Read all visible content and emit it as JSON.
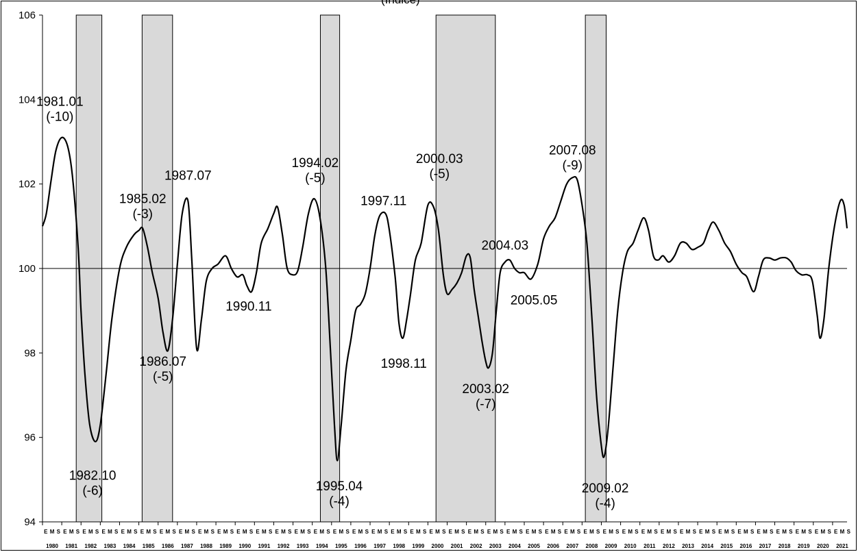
{
  "top_fragment": "(Índice)",
  "chart_data": {
    "type": "line",
    "title": "",
    "xlabel": "",
    "ylabel": "",
    "ylim": [
      94,
      106
    ],
    "y_ticks": [
      94,
      96,
      98,
      100,
      102,
      104,
      106
    ],
    "reference_line": 100,
    "grid": false,
    "x_start": 1980.0,
    "x_end": 2021.75,
    "year_labels": [
      "1980",
      "1981",
      "1982",
      "1983",
      "1984",
      "1985",
      "1986",
      "1987",
      "1988",
      "1989",
      "1990",
      "1991",
      "1992",
      "1993",
      "1994",
      "1995",
      "1996",
      "1997",
      "1998",
      "1999",
      "2000",
      "2001",
      "2002",
      "2003",
      "2004",
      "2005",
      "2006",
      "2007",
      "2008",
      "2009",
      "2010",
      "2011",
      "2012",
      "2013",
      "2014",
      "2015",
      "2016",
      "2017",
      "2018",
      "2019",
      "2020",
      "2021"
    ],
    "month_letters": [
      "E",
      "M",
      "S"
    ],
    "shaded_periods": [
      [
        1981.75,
        1983.08
      ],
      [
        1985.17,
        1986.75
      ],
      [
        1994.42,
        1995.42
      ],
      [
        2000.42,
        2003.5
      ],
      [
        2008.17,
        2009.25
      ]
    ],
    "series": [
      {
        "points": [
          [
            1980.0,
            101.0
          ],
          [
            1980.2,
            101.3
          ],
          [
            1980.45,
            102.1
          ],
          [
            1980.7,
            102.8
          ],
          [
            1981.0,
            103.1
          ],
          [
            1981.3,
            102.9
          ],
          [
            1981.55,
            102.2
          ],
          [
            1981.85,
            100.5
          ],
          [
            1982.0,
            99.0
          ],
          [
            1982.2,
            97.5
          ],
          [
            1982.45,
            96.3
          ],
          [
            1982.75,
            95.9
          ],
          [
            1983.0,
            96.3
          ],
          [
            1983.3,
            97.5
          ],
          [
            1983.6,
            98.8
          ],
          [
            1984.0,
            100.0
          ],
          [
            1984.35,
            100.5
          ],
          [
            1984.75,
            100.8
          ],
          [
            1985.0,
            100.9
          ],
          [
            1985.2,
            100.95
          ],
          [
            1985.45,
            100.5
          ],
          [
            1985.7,
            99.9
          ],
          [
            1986.0,
            99.3
          ],
          [
            1986.25,
            98.5
          ],
          [
            1986.5,
            98.05
          ],
          [
            1986.75,
            98.8
          ],
          [
            1987.0,
            100.1
          ],
          [
            1987.25,
            101.3
          ],
          [
            1987.55,
            101.6
          ],
          [
            1987.75,
            100.2
          ],
          [
            1988.0,
            98.1
          ],
          [
            1988.25,
            98.8
          ],
          [
            1988.5,
            99.7
          ],
          [
            1988.8,
            100.0
          ],
          [
            1989.1,
            100.1
          ],
          [
            1989.5,
            100.3
          ],
          [
            1989.8,
            100.0
          ],
          [
            1990.1,
            99.8
          ],
          [
            1990.4,
            99.85
          ],
          [
            1990.6,
            99.6
          ],
          [
            1990.85,
            99.45
          ],
          [
            1991.1,
            99.9
          ],
          [
            1991.35,
            100.6
          ],
          [
            1991.7,
            100.95
          ],
          [
            1992.0,
            101.3
          ],
          [
            1992.2,
            101.45
          ],
          [
            1992.45,
            100.8
          ],
          [
            1992.7,
            100.0
          ],
          [
            1993.0,
            99.85
          ],
          [
            1993.25,
            99.95
          ],
          [
            1993.5,
            100.5
          ],
          [
            1993.8,
            101.3
          ],
          [
            1994.1,
            101.65
          ],
          [
            1994.4,
            101.2
          ],
          [
            1994.7,
            100.0
          ],
          [
            1994.95,
            98.0
          ],
          [
            1995.15,
            96.3
          ],
          [
            1995.3,
            95.45
          ],
          [
            1995.5,
            96.3
          ],
          [
            1995.75,
            97.6
          ],
          [
            1996.0,
            98.3
          ],
          [
            1996.25,
            99.0
          ],
          [
            1996.5,
            99.15
          ],
          [
            1996.75,
            99.4
          ],
          [
            1997.0,
            100.0
          ],
          [
            1997.25,
            100.8
          ],
          [
            1997.5,
            101.25
          ],
          [
            1997.8,
            101.3
          ],
          [
            1998.0,
            100.9
          ],
          [
            1998.3,
            99.8
          ],
          [
            1998.5,
            98.7
          ],
          [
            1998.7,
            98.35
          ],
          [
            1998.9,
            98.8
          ],
          [
            1999.1,
            99.4
          ],
          [
            1999.35,
            100.2
          ],
          [
            1999.65,
            100.6
          ],
          [
            2000.0,
            101.5
          ],
          [
            2000.3,
            101.45
          ],
          [
            2000.55,
            100.9
          ],
          [
            2000.8,
            99.85
          ],
          [
            2001.0,
            99.4
          ],
          [
            2001.25,
            99.5
          ],
          [
            2001.5,
            99.65
          ],
          [
            2001.75,
            99.9
          ],
          [
            2002.0,
            100.3
          ],
          [
            2002.2,
            100.25
          ],
          [
            2002.4,
            99.5
          ],
          [
            2002.6,
            98.9
          ],
          [
            2002.8,
            98.3
          ],
          [
            2003.0,
            97.8
          ],
          [
            2003.15,
            97.65
          ],
          [
            2003.35,
            98.0
          ],
          [
            2003.55,
            99.0
          ],
          [
            2003.75,
            99.9
          ],
          [
            2004.0,
            100.15
          ],
          [
            2004.25,
            100.2
          ],
          [
            2004.5,
            100.0
          ],
          [
            2004.75,
            99.9
          ],
          [
            2005.0,
            99.9
          ],
          [
            2005.35,
            99.75
          ],
          [
            2005.7,
            100.1
          ],
          [
            2006.0,
            100.7
          ],
          [
            2006.3,
            101.0
          ],
          [
            2006.6,
            101.2
          ],
          [
            2006.9,
            101.6
          ],
          [
            2007.2,
            102.0
          ],
          [
            2007.5,
            102.15
          ],
          [
            2007.75,
            102.1
          ],
          [
            2008.0,
            101.5
          ],
          [
            2008.25,
            100.6
          ],
          [
            2008.5,
            98.9
          ],
          [
            2008.75,
            97.0
          ],
          [
            2009.0,
            95.8
          ],
          [
            2009.15,
            95.55
          ],
          [
            2009.35,
            96.2
          ],
          [
            2009.6,
            97.6
          ],
          [
            2009.85,
            99.0
          ],
          [
            2010.1,
            99.9
          ],
          [
            2010.35,
            100.4
          ],
          [
            2010.65,
            100.6
          ],
          [
            2010.9,
            100.9
          ],
          [
            2011.2,
            101.2
          ],
          [
            2011.45,
            100.9
          ],
          [
            2011.7,
            100.3
          ],
          [
            2011.95,
            100.2
          ],
          [
            2012.2,
            100.3
          ],
          [
            2012.5,
            100.15
          ],
          [
            2012.8,
            100.3
          ],
          [
            2013.1,
            100.6
          ],
          [
            2013.4,
            100.6
          ],
          [
            2013.7,
            100.45
          ],
          [
            2014.0,
            100.5
          ],
          [
            2014.3,
            100.6
          ],
          [
            2014.55,
            100.9
          ],
          [
            2014.8,
            101.1
          ],
          [
            2015.1,
            100.9
          ],
          [
            2015.4,
            100.6
          ],
          [
            2015.7,
            100.4
          ],
          [
            2016.0,
            100.1
          ],
          [
            2016.3,
            99.9
          ],
          [
            2016.55,
            99.8
          ],
          [
            2016.9,
            99.45
          ],
          [
            2017.15,
            99.8
          ],
          [
            2017.4,
            100.2
          ],
          [
            2017.7,
            100.25
          ],
          [
            2018.0,
            100.2
          ],
          [
            2018.3,
            100.25
          ],
          [
            2018.6,
            100.25
          ],
          [
            2018.85,
            100.15
          ],
          [
            2019.1,
            99.95
          ],
          [
            2019.4,
            99.85
          ],
          [
            2019.7,
            99.85
          ],
          [
            2019.95,
            99.7
          ],
          [
            2020.2,
            98.9
          ],
          [
            2020.35,
            98.35
          ],
          [
            2020.55,
            98.8
          ],
          [
            2020.8,
            100.0
          ],
          [
            2021.1,
            101.0
          ],
          [
            2021.4,
            101.6
          ],
          [
            2021.6,
            101.5
          ],
          [
            2021.75,
            100.95
          ]
        ]
      }
    ],
    "annotations": [
      {
        "lines": [
          "1981.01",
          "(-10)"
        ],
        "x": 1980.9,
        "y": 103.85
      },
      {
        "lines": [
          "1982.10",
          "(-6)"
        ],
        "x": 1982.6,
        "y": 95.0
      },
      {
        "lines": [
          "1985.02",
          "(-3)"
        ],
        "x": 1985.2,
        "y": 101.55
      },
      {
        "lines": [
          "1986.07",
          "(-5)"
        ],
        "x": 1986.25,
        "y": 97.7
      },
      {
        "lines": [
          "1987.07"
        ],
        "x": 1987.55,
        "y": 102.1
      },
      {
        "lines": [
          "1990.11"
        ],
        "x": 1990.7,
        "y": 99.0
      },
      {
        "lines": [
          "1994.02",
          "(-5)"
        ],
        "x": 1994.15,
        "y": 102.4
      },
      {
        "lines": [
          "1995.04",
          "(-4)"
        ],
        "x": 1995.4,
        "y": 94.75
      },
      {
        "lines": [
          "1997.11"
        ],
        "x": 1997.7,
        "y": 101.5
      },
      {
        "lines": [
          "1998.11"
        ],
        "x": 1998.75,
        "y": 97.65
      },
      {
        "lines": [
          "2000.03",
          "(-5)"
        ],
        "x": 2000.6,
        "y": 102.5
      },
      {
        "lines": [
          "2003.02",
          "(-7)"
        ],
        "x": 2003.0,
        "y": 97.05
      },
      {
        "lines": [
          "2004.03"
        ],
        "x": 2004.0,
        "y": 100.45
      },
      {
        "lines": [
          "2005.05"
        ],
        "x": 2005.5,
        "y": 99.15
      },
      {
        "lines": [
          "2007.08",
          "(-9)"
        ],
        "x": 2007.5,
        "y": 102.7
      },
      {
        "lines": [
          "2009.02",
          "(-4)"
        ],
        "x": 2009.2,
        "y": 94.7
      }
    ]
  }
}
